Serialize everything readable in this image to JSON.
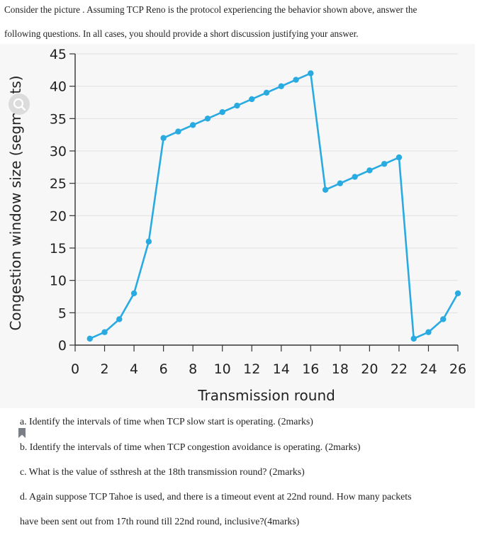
{
  "question": {
    "intro_line1": "Consider the picture . Assuming TCP Reno is the protocol experiencing the behavior shown above, answer the",
    "intro_line2": "following questions. In all cases, you should provide a short discussion justifying your answer.",
    "parts": [
      "a. Identify the intervals of time when TCP slow start is operating. (2marks)",
      "b. Identify the intervals of time when TCP congestion avoidance is operating. (2marks)",
      "c. What is the value of ssthresh at the 18th transmission round? (2marks)",
      "d. Again suppose TCP Tahoe is used, and there is a timeout event at 22nd round. How many packets",
      "have been sent out from 17th round till 22nd round, inclusive?(4marks)"
    ]
  },
  "icons": {
    "zoom": "search-icon",
    "bookmark": "bookmark-icon"
  },
  "chart_data": {
    "type": "line",
    "xlabel": "Transmission round",
    "ylabel": "Congestion window size (segments)",
    "xlim": [
      0,
      26
    ],
    "ylim": [
      0,
      45
    ],
    "xticks": [
      0,
      2,
      4,
      6,
      8,
      10,
      12,
      14,
      16,
      18,
      20,
      22,
      24,
      26
    ],
    "yticks": [
      0,
      5,
      10,
      15,
      20,
      25,
      30,
      35,
      40,
      45
    ],
    "grid": "horizontal",
    "line_color": "#29abe2",
    "series": [
      {
        "x": [
          1,
          2,
          3,
          4,
          5,
          6,
          7,
          8,
          9,
          10,
          11,
          12,
          13,
          14,
          15,
          16,
          17,
          18,
          19,
          20,
          21,
          22,
          23,
          24,
          25,
          26
        ],
        "y": [
          1,
          2,
          4,
          8,
          16,
          32,
          33,
          34,
          35,
          36,
          37,
          38,
          39,
          40,
          41,
          42,
          24,
          25,
          26,
          27,
          28,
          29,
          1,
          2,
          4,
          8
        ]
      }
    ]
  }
}
